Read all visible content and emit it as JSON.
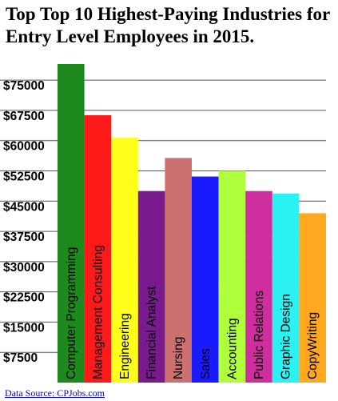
{
  "chart_data": {
    "type": "bar",
    "title": "Top Top 10 Highest-Paying Industries for Entry Level Employees in 2015.",
    "categories": [
      "Computer Programming",
      "Management Consulting",
      "Engineering",
      "Financial Analyst",
      "Nursing",
      "Sales",
      "Accounting",
      "Public Relations",
      "Graphic Design",
      "CopyWriting"
    ],
    "values": [
      79000,
      66300,
      60700,
      47500,
      55700,
      51100,
      52500,
      47500,
      46900,
      42000
    ],
    "colors": [
      "#1e8a1e",
      "#ff1a1a",
      "#ffff1a",
      "#7a1a8f",
      "#cd7070",
      "#1a1aff",
      "#b0ff3c",
      "#cf2f9e",
      "#2bf2f2",
      "#ffa820"
    ],
    "yticks": [
      "$75000",
      "$67500",
      "$60000",
      "$52500",
      "$45000",
      "$37500",
      "$30000",
      "$22500",
      "$15000",
      "$7500"
    ],
    "ytick_values": [
      75000,
      67500,
      60000,
      52500,
      45000,
      37500,
      30000,
      22500,
      15000,
      7500
    ],
    "ylim": [
      0,
      79000
    ],
    "grid": true,
    "source_label": "Data Source: CPJobs.com"
  }
}
